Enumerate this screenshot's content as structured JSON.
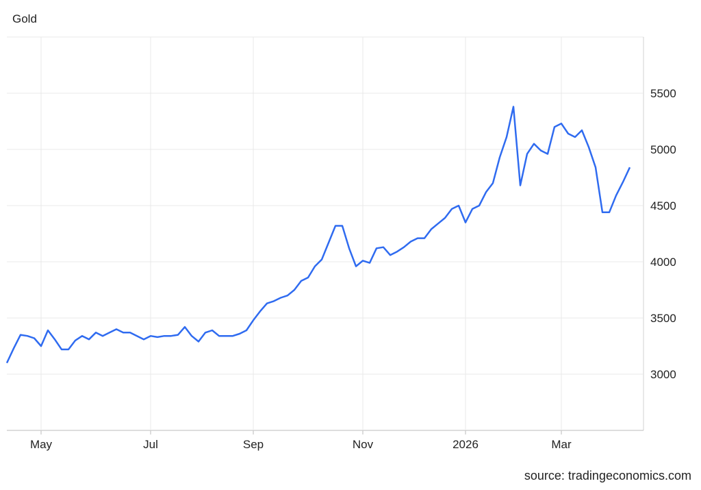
{
  "chart_data": {
    "type": "line",
    "title": "Gold",
    "source": "source: tradingeconomics.com",
    "color": "#2f6bf0",
    "grid": true,
    "ylim": [
      2500,
      6000
    ],
    "yticks": [
      3000,
      3500,
      4000,
      4500,
      5000,
      5500
    ],
    "categories": [
      null,
      null,
      null,
      null,
      null,
      "May",
      null,
      null,
      null,
      null,
      null,
      null,
      null,
      null,
      null,
      null,
      null,
      null,
      null,
      null,
      null,
      "Jul",
      null,
      null,
      null,
      null,
      null,
      null,
      null,
      null,
      null,
      null,
      null,
      null,
      null,
      null,
      "Sep",
      null,
      null,
      null,
      null,
      null,
      null,
      null,
      null,
      null,
      null,
      null,
      null,
      null,
      null,
      null,
      "Nov",
      null,
      null,
      null,
      null,
      null,
      null,
      null,
      null,
      null,
      null,
      null,
      null,
      null,
      null,
      "2026",
      null,
      null,
      null,
      null,
      null,
      null,
      null,
      null,
      null,
      null,
      null,
      null,
      null,
      "Mar",
      null,
      null,
      null,
      null,
      null,
      null,
      null,
      null,
      null,
      null
    ],
    "values": [
      3100,
      3230,
      3350,
      3340,
      3320,
      3250,
      3390,
      3310,
      3220,
      3220,
      3300,
      3340,
      3310,
      3370,
      3340,
      3370,
      3400,
      3370,
      3370,
      3340,
      3310,
      3340,
      3330,
      3340,
      3340,
      3350,
      3420,
      3340,
      3290,
      3370,
      3390,
      3340,
      3340,
      3340,
      3360,
      3390,
      3480,
      3560,
      3630,
      3650,
      3680,
      3700,
      3750,
      3830,
      3860,
      3960,
      4020,
      4170,
      4320,
      4320,
      4120,
      3960,
      4010,
      3990,
      4120,
      4130,
      4060,
      4090,
      4130,
      4180,
      4210,
      4210,
      4290,
      4340,
      4390,
      4470,
      4500,
      4350,
      4470,
      4500,
      4620,
      4700,
      4930,
      5110,
      5380,
      4680,
      4960,
      5050,
      4990,
      4960,
      5200,
      5230,
      5140,
      5110,
      5170,
      5020,
      4840,
      4440,
      4440,
      4590,
      4710,
      4840
    ]
  }
}
